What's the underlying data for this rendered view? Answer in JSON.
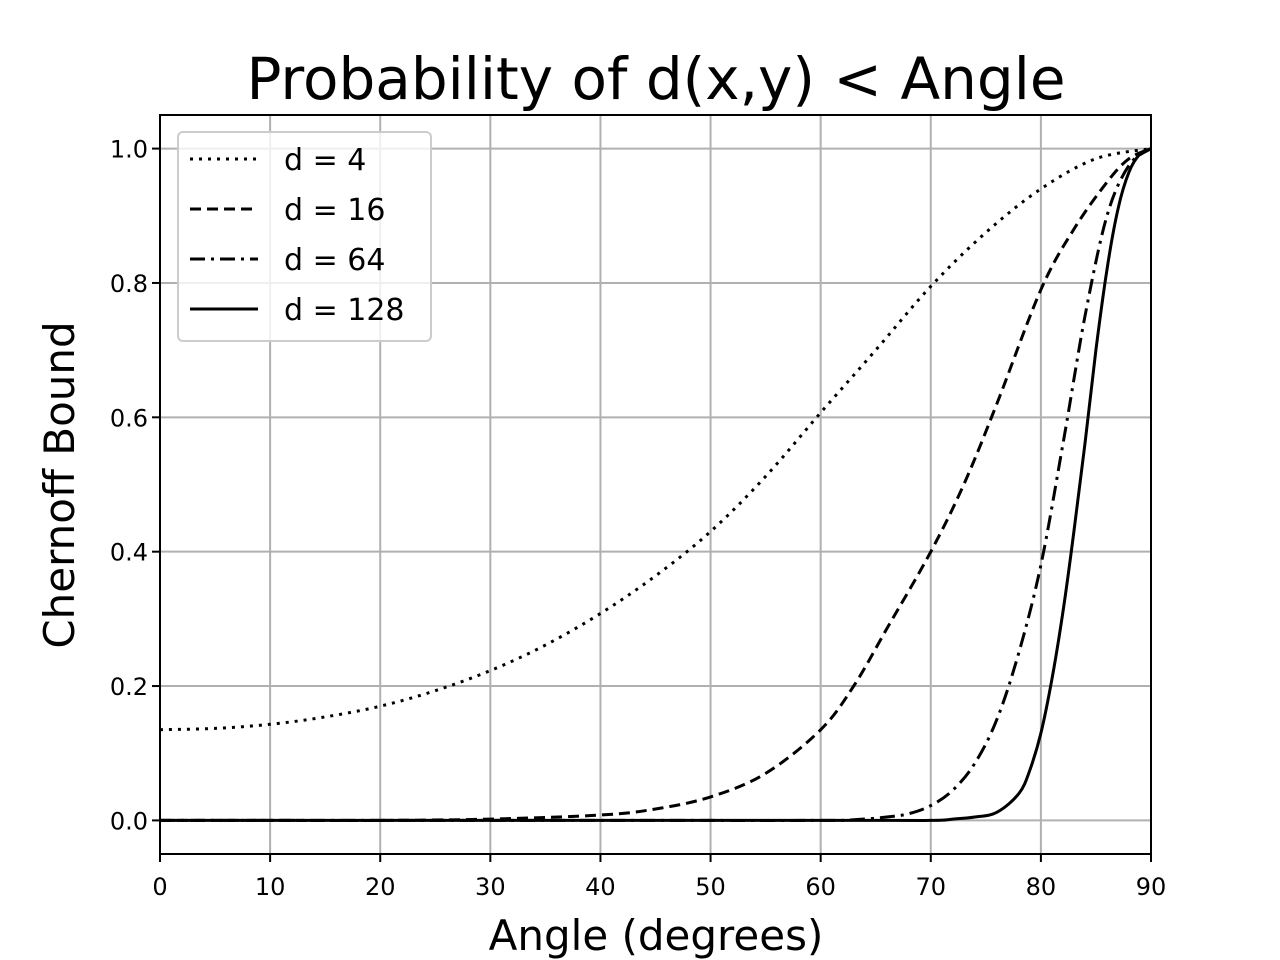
{
  "chart_data": {
    "type": "line",
    "title": "Probability of d(x,y) < Angle",
    "xlabel": "Angle (degrees)",
    "ylabel": "Chernoff Bound",
    "xlim": [
      0,
      90
    ],
    "ylim": [
      -0.05,
      1.05
    ],
    "xticks": [
      0,
      10,
      20,
      30,
      40,
      50,
      60,
      70,
      80,
      90
    ],
    "xtick_labels": [
      "0",
      "10",
      "20",
      "30",
      "40",
      "50",
      "60",
      "70",
      "80",
      "90"
    ],
    "yticks": [
      0.0,
      0.2,
      0.4,
      0.6,
      0.8,
      1.0
    ],
    "ytick_labels": [
      "0.0",
      "0.2",
      "0.4",
      "0.6",
      "0.8",
      "1.0"
    ],
    "grid": true,
    "legend": {
      "position": "upper-left"
    },
    "series_color": "#000000",
    "series": [
      {
        "name": "d = 4",
        "line_style": "dotted",
        "x": [
          0,
          5,
          10,
          15,
          20,
          25,
          30,
          35,
          40,
          45,
          50,
          55,
          60,
          65,
          70,
          75,
          80,
          85,
          90
        ],
        "y": [
          0.135,
          0.137,
          0.143,
          0.154,
          0.17,
          0.193,
          0.223,
          0.261,
          0.308,
          0.364,
          0.43,
          0.512,
          0.607,
          0.7,
          0.795,
          0.875,
          0.94,
          0.985,
          1.0
        ]
      },
      {
        "name": "d = 16",
        "line_style": "dashed",
        "x": [
          0,
          10,
          20,
          30,
          40,
          45,
          50,
          55,
          60,
          63,
          66,
          70,
          73,
          76,
          80,
          83,
          86,
          88,
          90
        ],
        "y": [
          0.0,
          0.0,
          0.0,
          0.002,
          0.008,
          0.017,
          0.035,
          0.07,
          0.135,
          0.2,
          0.285,
          0.4,
          0.5,
          0.62,
          0.79,
          0.88,
          0.95,
          0.985,
          1.0
        ]
      },
      {
        "name": "d = 64",
        "line_style": "dashdot",
        "x": [
          0,
          20,
          40,
          60,
          63,
          66,
          68,
          70,
          72,
          74,
          76,
          78,
          80,
          82,
          84,
          86,
          88,
          90
        ],
        "y": [
          0.0,
          0.0,
          0.0,
          0.0,
          0.001,
          0.005,
          0.01,
          0.022,
          0.045,
          0.085,
          0.15,
          0.25,
          0.38,
          0.56,
          0.75,
          0.9,
          0.975,
          1.0
        ]
      },
      {
        "name": "d = 128",
        "line_style": "solid",
        "x": [
          0,
          30,
          60,
          70,
          72,
          74,
          76,
          78,
          79,
          80,
          81,
          82,
          83,
          84,
          85,
          86,
          87,
          88,
          89,
          90
        ],
        "y": [
          0.0,
          0.0,
          0.0,
          0.0,
          0.002,
          0.005,
          0.012,
          0.04,
          0.075,
          0.13,
          0.21,
          0.31,
          0.43,
          0.56,
          0.7,
          0.82,
          0.91,
          0.965,
          0.992,
          1.0
        ]
      }
    ]
  }
}
